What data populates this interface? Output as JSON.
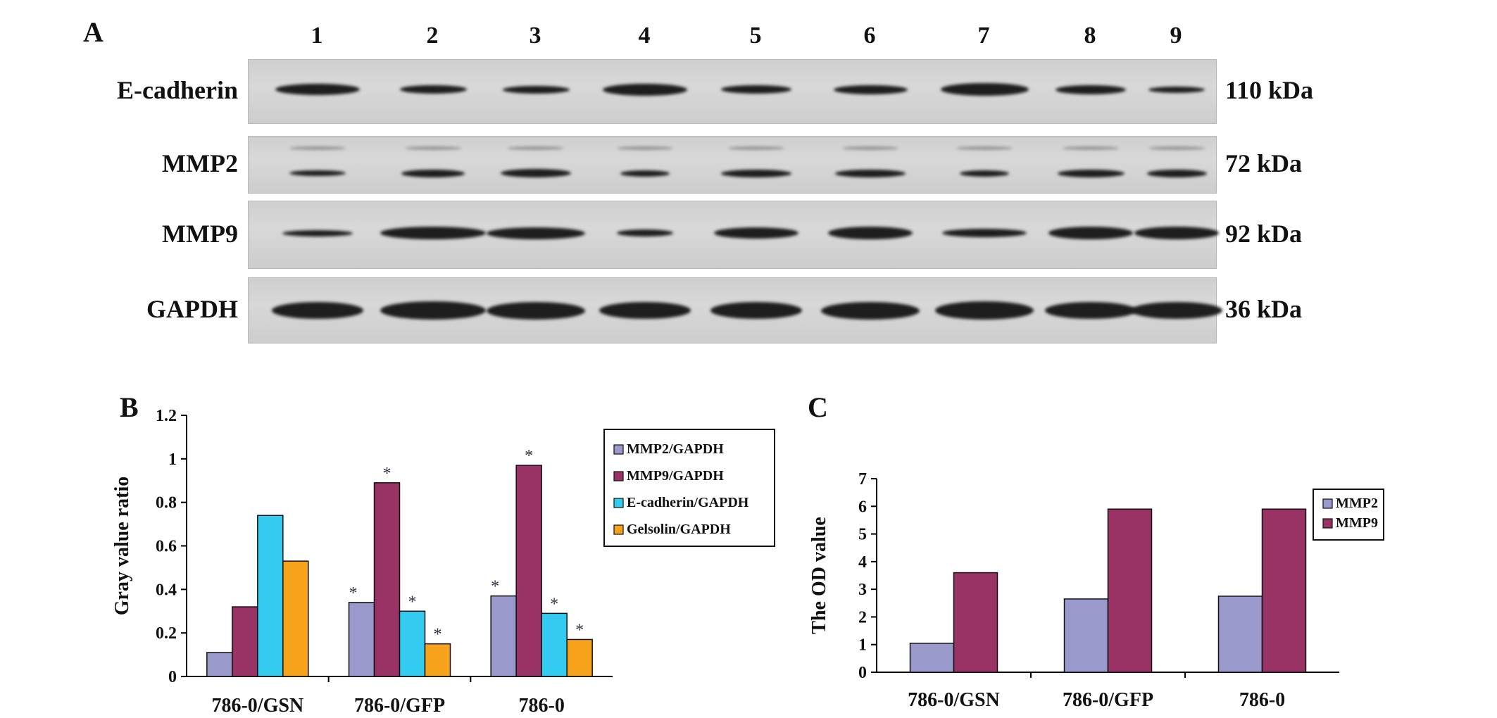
{
  "panels": {
    "A": "A",
    "B": "B",
    "C": "C"
  },
  "western_blot": {
    "lanes": [
      "1",
      "2",
      "3",
      "4",
      "5",
      "6",
      "7",
      "8",
      "9"
    ],
    "rows": [
      {
        "protein": "E-cadherin",
        "mw": "110 kDa"
      },
      {
        "protein": "MMP2",
        "mw": "72 kDa"
      },
      {
        "protein": "MMP9",
        "mw": "92 kDa"
      },
      {
        "protein": "GAPDH",
        "mw": "36 kDa"
      }
    ]
  },
  "chart_data": [
    {
      "type": "bar",
      "panel": "B",
      "categories": [
        "786-0/GSN",
        "786-0/GFP",
        "786-0"
      ],
      "series": [
        {
          "name": "MMP2/GAPDH",
          "values": [
            0.11,
            0.34,
            0.37
          ],
          "color": "#9999CC",
          "significant": [
            false,
            true,
            true
          ]
        },
        {
          "name": "MMP9/GAPDH",
          "values": [
            0.32,
            0.89,
            0.97
          ],
          "color": "#993366",
          "significant": [
            false,
            true,
            true
          ]
        },
        {
          "name": "E-cadherin/GAPDH",
          "values": [
            0.74,
            0.3,
            0.29
          ],
          "color": "#33CCF0",
          "significant": [
            false,
            true,
            true
          ]
        },
        {
          "name": "Gelsolin/GAPDH",
          "values": [
            0.53,
            0.15,
            0.17
          ],
          "color": "#F7A21B",
          "significant": [
            false,
            true,
            true
          ]
        }
      ],
      "significance_mark": "*",
      "ylabel": "Gray value ratio",
      "ylim": [
        0,
        1.2
      ],
      "yticks": [
        "0",
        "0.2",
        "0.4",
        "0.6",
        "0.8",
        "1",
        "1.2"
      ],
      "legend": "top-right"
    },
    {
      "type": "bar",
      "panel": "C",
      "categories": [
        "786-0/GSN",
        "786-0/GFP",
        "786-0"
      ],
      "series": [
        {
          "name": "MMP2",
          "values": [
            1.05,
            2.65,
            2.75
          ],
          "color": "#9999CC"
        },
        {
          "name": "MMP9",
          "values": [
            3.6,
            5.9,
            5.9
          ],
          "color": "#993366"
        }
      ],
      "ylabel": "The OD value",
      "ylim": [
        0,
        7
      ],
      "yticks": [
        "0",
        "1",
        "2",
        "3",
        "4",
        "5",
        "6",
        "7"
      ],
      "legend": "top-right"
    }
  ]
}
